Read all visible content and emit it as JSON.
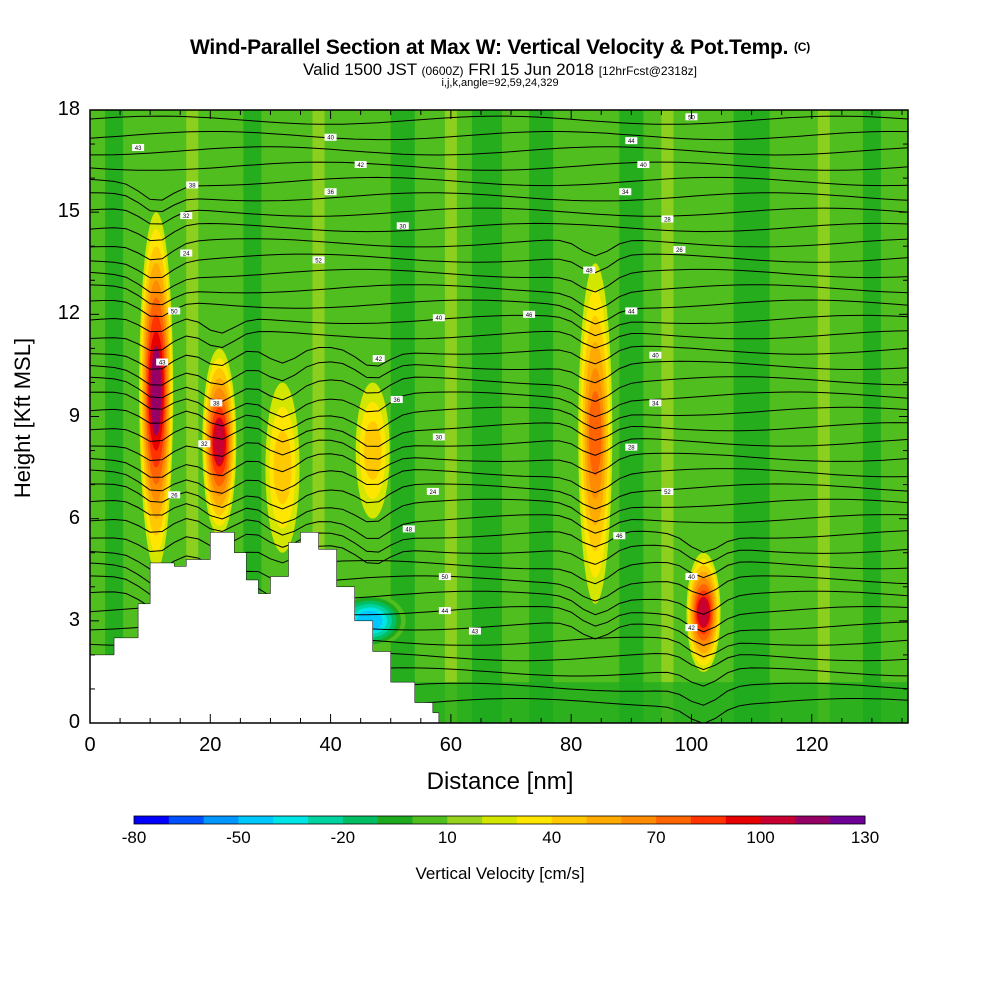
{
  "title": {
    "main": "Wind-Parallel Section at Max W: Vertical Velocity & Pot.Temp.",
    "copyright": "(C)",
    "valid_prefix": "Valid 1500 JST",
    "valid_small": "(0600Z)",
    "valid_date": "FRI 15 Jun 2018",
    "fcst": "[12hrFcst@2318z]",
    "indices": "i,j,k,angle=92,59,24,329"
  },
  "chart_data": {
    "type": "heatmap",
    "xlabel": "Distance [nm]",
    "ylabel": "Height [Kft MSL]",
    "xlim": [
      0,
      136
    ],
    "ylim": [
      0,
      18
    ],
    "x_ticks": [
      "0",
      "20",
      "40",
      "60",
      "80",
      "100",
      "120"
    ],
    "y_ticks": [
      "0",
      "3",
      "6",
      "9",
      "12",
      "15",
      "18"
    ],
    "colorbar": {
      "title": "Vertical Velocity [cm/s]",
      "tick_labels": [
        "-80",
        "-50",
        "-20",
        "10",
        "40",
        "70",
        "100",
        "130"
      ],
      "colors": [
        "#0000ff",
        "#0050ff",
        "#0096ff",
        "#00c8ff",
        "#00e6e6",
        "#00d2a0",
        "#00be64",
        "#1eaa1e",
        "#50be1e",
        "#96d21e",
        "#d2e600",
        "#ffe600",
        "#ffc800",
        "#ffaa00",
        "#ff8c00",
        "#ff6400",
        "#ff3200",
        "#e60000",
        "#c80032",
        "#960064",
        "#6e0096"
      ]
    },
    "updrafts": [
      {
        "x": 11,
        "y_bottom": 4.5,
        "y_top": 15,
        "peak": 110
      },
      {
        "x": 21.5,
        "y_bottom": 5.5,
        "y_top": 11,
        "peak": 100
      },
      {
        "x": 32,
        "y_bottom": 5,
        "y_top": 10,
        "peak": 45
      },
      {
        "x": 47,
        "y_bottom": 6,
        "y_top": 10,
        "peak": 40
      },
      {
        "x": 84,
        "y_bottom": 3.5,
        "y_top": 13.5,
        "peak": 75
      },
      {
        "x": 102,
        "y_bottom": 1.5,
        "y_top": 5,
        "peak": 100
      }
    ],
    "downdrafts": [
      {
        "x": 46.5,
        "y": 3,
        "peak": -50
      }
    ],
    "terrain": [
      [
        0,
        2
      ],
      [
        4,
        2.5
      ],
      [
        8,
        3.5
      ],
      [
        10,
        4.7
      ],
      [
        14,
        4.6
      ],
      [
        16,
        4.8
      ],
      [
        20,
        5.6
      ],
      [
        22,
        5.6
      ],
      [
        24,
        5
      ],
      [
        26,
        4.2
      ],
      [
        28,
        3.8
      ],
      [
        30,
        4.3
      ],
      [
        33,
        5.3
      ],
      [
        35,
        5.6
      ],
      [
        38,
        5.1
      ],
      [
        41,
        4
      ],
      [
        44,
        3
      ],
      [
        47,
        2.1
      ],
      [
        50,
        1.2
      ],
      [
        54,
        0.6
      ],
      [
        57,
        0.3
      ],
      [
        58,
        0.3
      ],
      [
        58,
        0
      ],
      [
        136,
        0
      ],
      [
        136,
        0.3
      ]
    ],
    "contour_labels": [
      "50",
      "40",
      "44",
      "43",
      "42",
      "40",
      "38",
      "36",
      "34",
      "32",
      "30",
      "28",
      "26",
      "24",
      "52",
      "48",
      "46"
    ]
  }
}
